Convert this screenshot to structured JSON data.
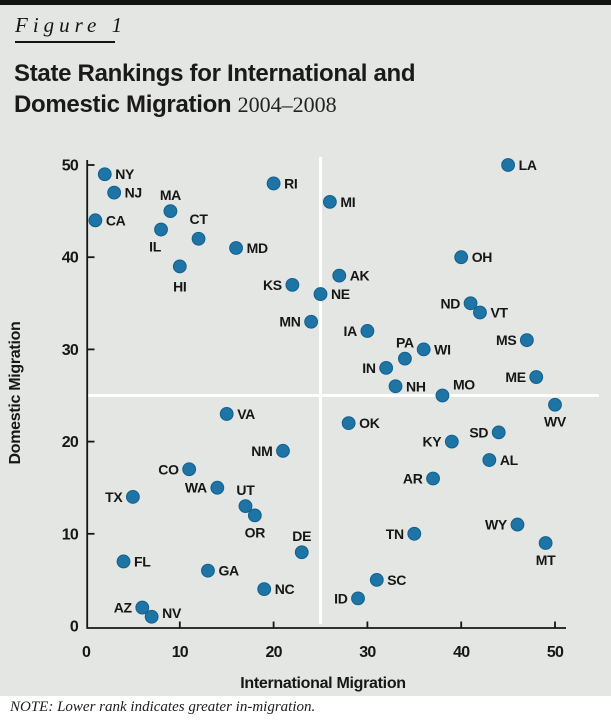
{
  "figure_label": "Figure 1",
  "title": {
    "line1": "State Rankings for International and",
    "line2_bold": "Domestic Migration",
    "period": "2004–2008"
  },
  "note": "NOTE: Lower rank indicates greater in-migration.",
  "colors": {
    "background": "#e4e6e3",
    "dot_fill": "#1e74a5",
    "dot_stroke": "#10608e",
    "axis": "#161616",
    "quadrant_line": "#ffffff",
    "text": "#1a1a1a"
  },
  "chart_data": {
    "type": "scatter",
    "xlabel": "International Migration",
    "ylabel": "Domestic Migration",
    "xlim": [
      0,
      50
    ],
    "ylim": [
      0,
      50
    ],
    "xticks": [
      0,
      10,
      20,
      30,
      40,
      50
    ],
    "yticks": [
      0,
      10,
      20,
      30,
      40,
      50
    ],
    "grid": false,
    "quadrant_lines": {
      "x": 25,
      "y": 25
    },
    "points": [
      {
        "state": "CA",
        "x": 1,
        "y": 44,
        "label_pos": "right"
      },
      {
        "state": "NY",
        "x": 2,
        "y": 49,
        "label_pos": "right"
      },
      {
        "state": "NJ",
        "x": 3,
        "y": 47,
        "label_pos": "right"
      },
      {
        "state": "FL",
        "x": 4,
        "y": 7,
        "label_pos": "right"
      },
      {
        "state": "TX",
        "x": 5,
        "y": 14,
        "label_pos": "left"
      },
      {
        "state": "AZ",
        "x": 6,
        "y": 2,
        "label_pos": "left"
      },
      {
        "state": "NV",
        "x": 7,
        "y": 1,
        "label_pos": "right",
        "label_dy": -4
      },
      {
        "state": "IL",
        "x": 8,
        "y": 43,
        "label_pos": "below",
        "label_dx": -6
      },
      {
        "state": "MA",
        "x": 9,
        "y": 45,
        "label_pos": "above"
      },
      {
        "state": "HI",
        "x": 10,
        "y": 39,
        "label_pos": "below",
        "label_dy": 3
      },
      {
        "state": "CO",
        "x": 11,
        "y": 17,
        "label_pos": "left"
      },
      {
        "state": "CT",
        "x": 12,
        "y": 42,
        "label_pos": "above",
        "label_dy": -4
      },
      {
        "state": "GA",
        "x": 13,
        "y": 6,
        "label_pos": "right"
      },
      {
        "state": "WA",
        "x": 14,
        "y": 15,
        "label_pos": "left"
      },
      {
        "state": "VA",
        "x": 15,
        "y": 23,
        "label_pos": "right"
      },
      {
        "state": "MD",
        "x": 16,
        "y": 41,
        "label_pos": "right"
      },
      {
        "state": "UT",
        "x": 17,
        "y": 13,
        "label_pos": "above"
      },
      {
        "state": "OR",
        "x": 18,
        "y": 12,
        "label_pos": "below"
      },
      {
        "state": "NC",
        "x": 19,
        "y": 4,
        "label_pos": "right"
      },
      {
        "state": "RI",
        "x": 20,
        "y": 48,
        "label_pos": "right"
      },
      {
        "state": "NM",
        "x": 21,
        "y": 19,
        "label_pos": "left"
      },
      {
        "state": "KS",
        "x": 22,
        "y": 37,
        "label_pos": "left"
      },
      {
        "state": "DE",
        "x": 23,
        "y": 8,
        "label_pos": "above"
      },
      {
        "state": "MN",
        "x": 24,
        "y": 33,
        "label_pos": "left"
      },
      {
        "state": "NE",
        "x": 25,
        "y": 36,
        "label_pos": "right"
      },
      {
        "state": "MI",
        "x": 26,
        "y": 46,
        "label_pos": "right"
      },
      {
        "state": "AK",
        "x": 27,
        "y": 38,
        "label_pos": "right"
      },
      {
        "state": "OK",
        "x": 28,
        "y": 22,
        "label_pos": "right"
      },
      {
        "state": "ID",
        "x": 29,
        "y": 3,
        "label_pos": "left"
      },
      {
        "state": "IA",
        "x": 30,
        "y": 32,
        "label_pos": "left"
      },
      {
        "state": "SC",
        "x": 31,
        "y": 5,
        "label_pos": "right"
      },
      {
        "state": "IN",
        "x": 32,
        "y": 28,
        "label_pos": "left"
      },
      {
        "state": "NH",
        "x": 33,
        "y": 26,
        "label_pos": "right"
      },
      {
        "state": "PA",
        "x": 34,
        "y": 29,
        "label_pos": "above"
      },
      {
        "state": "TN",
        "x": 35,
        "y": 10,
        "label_pos": "left"
      },
      {
        "state": "WI",
        "x": 36,
        "y": 30,
        "label_pos": "right"
      },
      {
        "state": "AR",
        "x": 37,
        "y": 16,
        "label_pos": "left"
      },
      {
        "state": "MO",
        "x": 38,
        "y": 25,
        "label_pos": "right",
        "label_dy": -11
      },
      {
        "state": "KY",
        "x": 39,
        "y": 20,
        "label_pos": "left"
      },
      {
        "state": "OH",
        "x": 40,
        "y": 40,
        "label_pos": "right"
      },
      {
        "state": "ND",
        "x": 41,
        "y": 35,
        "label_pos": "left"
      },
      {
        "state": "VT",
        "x": 42,
        "y": 34,
        "label_pos": "right"
      },
      {
        "state": "AL",
        "x": 43,
        "y": 18,
        "label_pos": "right"
      },
      {
        "state": "SD",
        "x": 44,
        "y": 21,
        "label_pos": "left"
      },
      {
        "state": "LA",
        "x": 45,
        "y": 50,
        "label_pos": "right"
      },
      {
        "state": "WY",
        "x": 46,
        "y": 11,
        "label_pos": "left"
      },
      {
        "state": "MS",
        "x": 47,
        "y": 31,
        "label_pos": "left"
      },
      {
        "state": "ME",
        "x": 48,
        "y": 27,
        "label_pos": "left"
      },
      {
        "state": "MT",
        "x": 49,
        "y": 9,
        "label_pos": "below"
      },
      {
        "state": "WV",
        "x": 50,
        "y": 24,
        "label_pos": "below"
      }
    ]
  }
}
